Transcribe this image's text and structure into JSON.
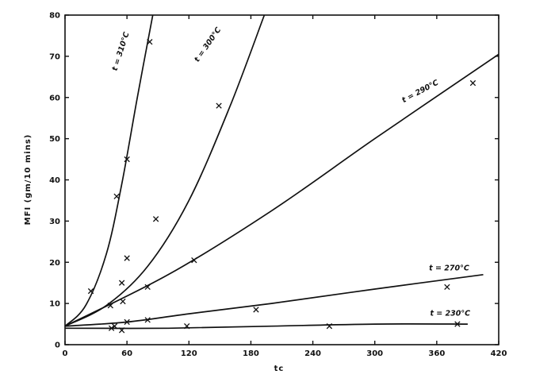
{
  "chart_data": {
    "type": "line",
    "xlabel": "tc",
    "ylabel": "MFI (gm/10 mins)",
    "xlim": [
      0,
      420
    ],
    "ylim": [
      0,
      80
    ],
    "xticks": [
      0,
      60,
      120,
      180,
      240,
      300,
      360,
      420
    ],
    "yticks": [
      0,
      10,
      20,
      30,
      40,
      50,
      60,
      70,
      80
    ],
    "grid": false,
    "series": [
      {
        "name": "t = 310°C",
        "curve": [
          [
            0,
            4.5
          ],
          [
            20,
            9.5
          ],
          [
            40,
            22
          ],
          [
            55,
            39
          ],
          [
            70,
            60
          ],
          [
            85,
            80
          ]
        ],
        "points": [
          [
            25,
            13
          ],
          [
            50,
            36
          ],
          [
            55,
            15
          ],
          [
            60,
            21
          ],
          [
            60,
            45
          ],
          [
            82,
            73.5
          ]
        ]
      },
      {
        "name": "t = 300°C",
        "curve": [
          [
            0,
            4.5
          ],
          [
            40,
            9.5
          ],
          [
            80,
            19
          ],
          [
            120,
            35
          ],
          [
            160,
            58
          ],
          [
            193,
            80
          ]
        ],
        "points": [
          [
            56,
            10.5
          ],
          [
            80,
            14
          ],
          [
            88,
            30.5
          ],
          [
            125,
            20.5
          ],
          [
            149,
            58
          ]
        ]
      },
      {
        "name": "t = 290°C",
        "curve": [
          [
            0,
            4.5
          ],
          [
            100,
            17
          ],
          [
            200,
            32.5
          ],
          [
            300,
            50
          ],
          [
            420,
            70.5
          ]
        ],
        "points": [
          [
            44,
            9.5
          ],
          [
            395,
            63.5
          ]
        ]
      },
      {
        "name": "t = 270°C",
        "curve": [
          [
            0,
            4.5
          ],
          [
            60,
            5.5
          ],
          [
            120,
            7.5
          ],
          [
            200,
            10
          ],
          [
            300,
            13.5
          ],
          [
            405,
            17
          ]
        ],
        "points": [
          [
            48,
            4.5
          ],
          [
            60,
            5.5
          ],
          [
            80,
            6
          ],
          [
            185,
            8.5
          ],
          [
            370,
            14
          ]
        ]
      },
      {
        "name": "t = 230°C",
        "curve": [
          [
            0,
            4
          ],
          [
            100,
            4
          ],
          [
            200,
            4.5
          ],
          [
            300,
            5
          ],
          [
            390,
            5
          ]
        ],
        "points": [
          [
            45,
            4
          ],
          [
            55,
            3.5
          ],
          [
            118,
            4.5
          ],
          [
            256,
            4.5
          ],
          [
            380,
            5
          ]
        ]
      }
    ],
    "labels": [
      {
        "text": "t = 310°C",
        "x": 56,
        "y": 71,
        "angle": -72
      },
      {
        "text": "t = 300°C",
        "x": 140,
        "y": 72.5,
        "angle": -55
      },
      {
        "text": "t = 290°C",
        "x": 345,
        "y": 61,
        "angle": -28
      },
      {
        "text": "t = 270°C",
        "x": 372,
        "y": 18,
        "angle": 0
      },
      {
        "text": "t = 230°C",
        "x": 373,
        "y": 7,
        "angle": 0
      }
    ]
  }
}
